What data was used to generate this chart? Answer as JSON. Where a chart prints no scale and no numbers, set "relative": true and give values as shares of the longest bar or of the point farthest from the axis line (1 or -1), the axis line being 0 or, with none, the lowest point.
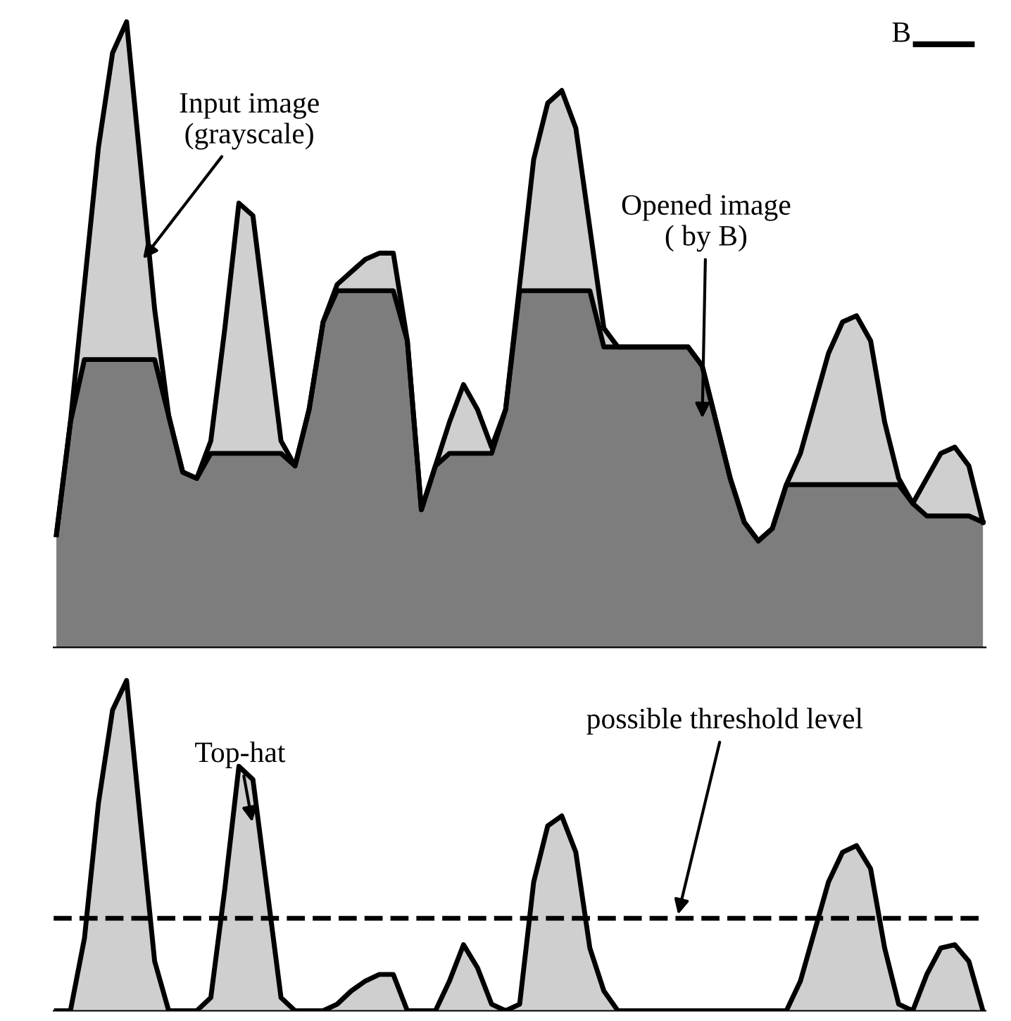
{
  "chart_data": [
    {
      "type": "area",
      "relative": true,
      "categories": [
        null,
        null,
        null,
        null,
        null,
        null,
        null,
        null,
        null,
        null,
        null,
        null,
        null,
        null,
        null,
        null,
        null,
        null,
        null,
        null,
        null,
        null,
        null,
        null,
        null,
        null,
        null,
        null,
        null,
        null,
        null,
        null,
        null,
        null,
        null,
        null,
        null,
        null,
        null,
        null,
        null,
        null,
        null,
        null,
        null,
        null,
        null,
        null,
        null,
        null,
        null,
        null,
        null,
        null,
        null,
        null,
        null,
        null,
        null,
        null,
        null,
        null,
        null,
        null,
        null,
        null,
        null
      ],
      "series": [
        {
          "name": "Input image\n(grayscale)",
          "color": "#cfcfcf",
          "values": [
            0.18,
            0.36,
            0.58,
            0.8,
            0.95,
            1.0,
            0.77,
            0.54,
            0.37,
            0.28,
            0.27,
            0.33,
            0.51,
            0.71,
            0.69,
            0.51,
            0.33,
            0.29,
            0.38,
            0.52,
            0.58,
            0.6,
            0.62,
            0.63,
            0.63,
            0.49,
            0.22,
            0.29,
            0.36,
            0.42,
            0.38,
            0.32,
            0.38,
            0.58,
            0.78,
            0.87,
            0.89,
            0.83,
            0.67,
            0.51,
            0.48,
            0.48,
            0.48,
            0.48,
            0.48,
            0.48,
            0.45,
            0.36,
            0.27,
            0.2,
            0.17,
            0.19,
            0.26,
            0.31,
            0.39,
            0.47,
            0.52,
            0.53,
            0.49,
            0.36,
            0.27,
            0.23,
            0.27,
            0.31,
            0.32,
            0.29,
            0.2
          ]
        },
        {
          "name": "Opened image\n( by B)",
          "color": "#7d7d7d",
          "values": [
            0.18,
            0.36,
            0.46,
            0.46,
            0.46,
            0.46,
            0.46,
            0.46,
            0.37,
            0.28,
            0.27,
            0.31,
            0.31,
            0.31,
            0.31,
            0.31,
            0.31,
            0.29,
            0.38,
            0.52,
            0.57,
            0.57,
            0.57,
            0.57,
            0.57,
            0.49,
            0.22,
            0.29,
            0.31,
            0.31,
            0.31,
            0.31,
            0.38,
            0.57,
            0.57,
            0.57,
            0.57,
            0.57,
            0.57,
            0.48,
            0.48,
            0.48,
            0.48,
            0.48,
            0.48,
            0.48,
            0.45,
            0.36,
            0.27,
            0.2,
            0.17,
            0.19,
            0.26,
            0.26,
            0.26,
            0.26,
            0.26,
            0.26,
            0.26,
            0.26,
            0.26,
            0.23,
            0.21,
            0.21,
            0.21,
            0.21,
            0.2
          ]
        }
      ],
      "annotations": [
        "B"
      ]
    },
    {
      "type": "area",
      "relative": true,
      "categories": [
        null,
        null,
        null,
        null,
        null,
        null,
        null,
        null,
        null,
        null,
        null,
        null,
        null,
        null,
        null,
        null,
        null,
        null,
        null,
        null,
        null,
        null,
        null,
        null,
        null,
        null,
        null,
        null,
        null,
        null,
        null,
        null,
        null,
        null,
        null,
        null,
        null,
        null,
        null,
        null,
        null,
        null,
        null,
        null,
        null,
        null,
        null,
        null,
        null,
        null,
        null,
        null,
        null,
        null,
        null,
        null,
        null,
        null,
        null,
        null,
        null,
        null,
        null,
        null,
        null,
        null,
        null
      ],
      "series": [
        {
          "name": "Top-hat",
          "color": "#cfcfcf",
          "values": [
            0,
            0,
            0.22,
            0.63,
            0.91,
            1,
            0.57,
            0.15,
            0,
            0,
            0,
            0.04,
            0.37,
            0.74,
            0.7,
            0.37,
            0.04,
            0,
            0,
            0,
            0.02,
            0.06,
            0.09,
            0.11,
            0.11,
            0,
            0,
            0,
            0.09,
            0.2,
            0.13,
            0.02,
            0,
            0.02,
            0.39,
            0.56,
            0.59,
            0.48,
            0.19,
            0.06,
            0,
            0,
            0,
            0,
            0,
            0,
            0,
            0,
            0,
            0,
            0,
            0,
            0,
            0.09,
            0.24,
            0.39,
            0.48,
            0.5,
            0.43,
            0.19,
            0.02,
            0,
            0.11,
            0.19,
            0.2,
            0.15,
            0
          ]
        }
      ],
      "ref_lines": [
        {
          "axis": "y",
          "value": 0.28,
          "label": "possible threshold level",
          "line_style": "dashed",
          "color": "#000000"
        }
      ],
      "legend": false
    }
  ]
}
